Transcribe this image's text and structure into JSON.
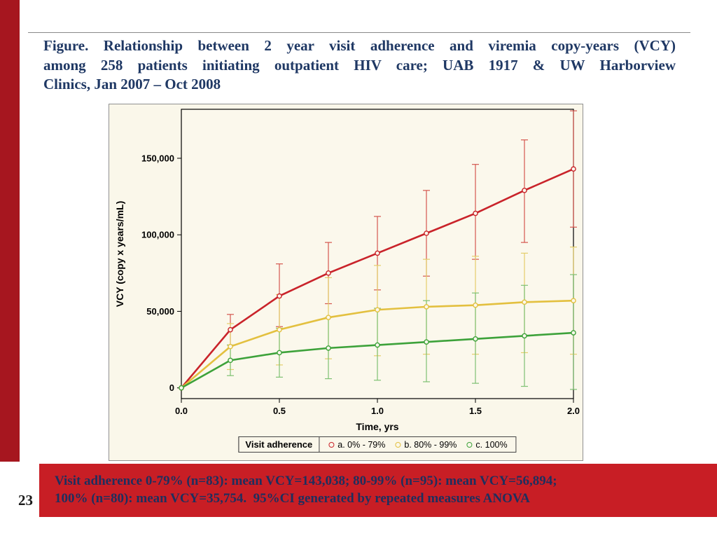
{
  "page_number": "23",
  "title": {
    "line1": "Figure. Relationship between 2 year visit adherence and viremia copy-years (VCY)",
    "line2": "among 258 patients initiating outpatient HIV care; UAB 1917 & UW Harborview",
    "line3": "Clinics, Jan 2007 – Oct 2008"
  },
  "footer": {
    "line1": "Visit adherence 0-79% (n=83): mean VCY=143,038; 80-99% (n=95): mean VCY=56,894;",
    "line2": "100% (n=80): mean VCY=35,754.  95%CI generated by repeated measures ANOVA"
  },
  "colors": {
    "accent_bar": "#A6161F",
    "footer_band": "#C81E25",
    "title_text": "#1F3864",
    "figure_bg": "#FAF7EA"
  },
  "chart_data": {
    "type": "line",
    "title": "",
    "xlabel": "Time, yrs",
    "ylabel": "VCY (copy x years/mL)",
    "legend_title": "Visit adherence",
    "legend_position": "bottom",
    "grid": false,
    "plot_bg": "#FBF8EC",
    "x": [
      0,
      0.25,
      0.5,
      0.75,
      1.0,
      1.25,
      1.5,
      1.75,
      2.0
    ],
    "xlim": [
      0,
      2
    ],
    "ylim": [
      -7000,
      182000
    ],
    "xticks": [
      0.0,
      0.5,
      1.0,
      1.5,
      2.0
    ],
    "xtick_labels": [
      "0.0",
      "0.5",
      "1.0",
      "1.5",
      "2.0"
    ],
    "yticks": [
      0,
      50000,
      100000,
      150000
    ],
    "ytick_labels": [
      "0",
      "50,000",
      "100,000",
      "150,000"
    ],
    "series": [
      {
        "name": "a. 0% - 79%",
        "color": "#C9232A",
        "ci_color": "#D4574F",
        "values": [
          0,
          38000,
          60000,
          75000,
          88000,
          101000,
          114000,
          129000,
          143000
        ],
        "ci_low": [
          0,
          28000,
          40000,
          55000,
          64000,
          73000,
          84000,
          95000,
          105000
        ],
        "ci_high": [
          0,
          48000,
          81000,
          95000,
          112000,
          129000,
          146000,
          162000,
          181000
        ]
      },
      {
        "name": "b. 80% - 99%",
        "color": "#E3C03F",
        "ci_color": "#E4CE6B",
        "values": [
          0,
          27000,
          38000,
          46000,
          51000,
          53000,
          54000,
          56000,
          57000
        ],
        "ci_low": [
          0,
          12000,
          15000,
          19000,
          21000,
          22000,
          22000,
          23000,
          22000
        ],
        "ci_high": [
          0,
          42000,
          61000,
          72000,
          80000,
          84000,
          86000,
          88000,
          92000
        ]
      },
      {
        "name": "c. 100%",
        "color": "#3DA23A",
        "ci_color": "#7FC173",
        "values": [
          0,
          18000,
          23000,
          26000,
          28000,
          30000,
          32000,
          34000,
          36000
        ],
        "ci_low": [
          0,
          8000,
          7000,
          6000,
          5000,
          4000,
          3000,
          1000,
          -1000
        ],
        "ci_high": [
          0,
          28000,
          39000,
          46000,
          52000,
          57000,
          62000,
          67000,
          74000
        ]
      }
    ]
  }
}
